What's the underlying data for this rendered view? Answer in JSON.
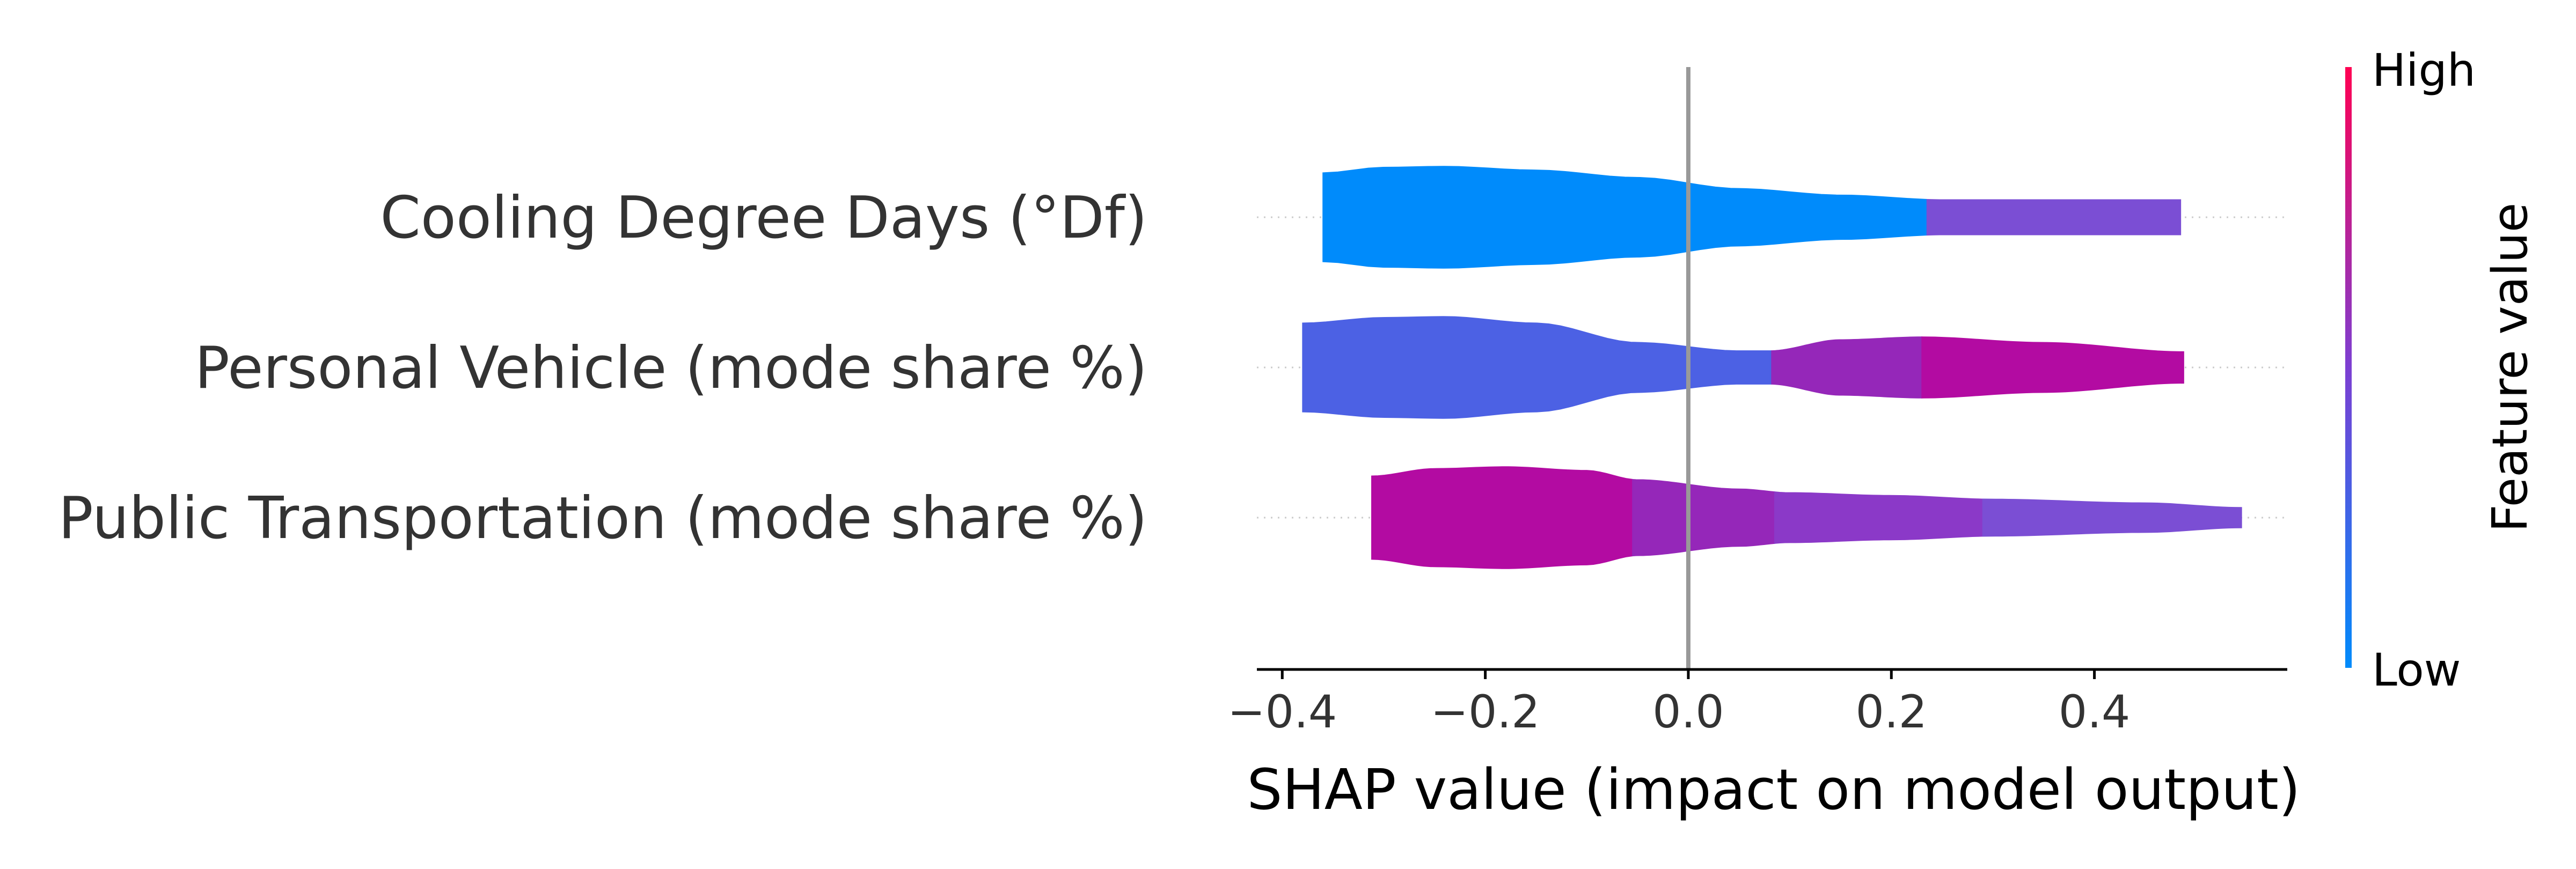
{
  "chart_data": {
    "type": "violin",
    "xlabel": "SHAP value (impact on model output)",
    "xlim": [
      -0.425,
      0.59
    ],
    "xticks": [
      -0.4,
      -0.2,
      0.0,
      0.2,
      0.4
    ],
    "xtick_labels": [
      "−0.4",
      "−0.2",
      "0.0",
      "0.2",
      "0.4"
    ],
    "zero_line": 0.0,
    "features": [
      {
        "name": "Cooling Degree Days (°Df)",
        "x_min": -0.36,
        "x_max": 0.485,
        "density": [
          [
            -0.36,
            0.48
          ],
          [
            -0.3,
            0.54
          ],
          [
            -0.24,
            0.55
          ],
          [
            -0.15,
            0.51
          ],
          [
            -0.05,
            0.43
          ],
          [
            0.05,
            0.31
          ],
          [
            0.15,
            0.24
          ],
          [
            0.25,
            0.19
          ],
          [
            0.35,
            0.19
          ],
          [
            0.485,
            0.19
          ]
        ],
        "color_segments": [
          {
            "from": -0.36,
            "to": 0.235,
            "color": "#008bfb"
          },
          {
            "from": 0.235,
            "to": 0.485,
            "color": "#7b4ed4"
          }
        ]
      },
      {
        "name": "Personal Vehicle (mode share %)",
        "x_min": -0.38,
        "x_max": 0.488,
        "density": [
          [
            -0.38,
            0.48
          ],
          [
            -0.3,
            0.54
          ],
          [
            -0.24,
            0.55
          ],
          [
            -0.15,
            0.48
          ],
          [
            -0.05,
            0.27
          ],
          [
            0.05,
            0.18
          ],
          [
            0.08,
            0.18
          ],
          [
            0.15,
            0.3
          ],
          [
            0.23,
            0.33
          ],
          [
            0.35,
            0.27
          ],
          [
            0.488,
            0.17
          ]
        ],
        "color_segments": [
          {
            "from": -0.38,
            "to": 0.082,
            "color": "#4c61e4"
          },
          {
            "from": 0.082,
            "to": 0.23,
            "color": "#9527b9"
          },
          {
            "from": 0.23,
            "to": 0.488,
            "color": "#b30ba2"
          }
        ]
      },
      {
        "name": "Public Transportation (mode share %)",
        "x_min": -0.312,
        "x_max": 0.545,
        "density": [
          [
            -0.312,
            0.45
          ],
          [
            -0.25,
            0.53
          ],
          [
            -0.18,
            0.55
          ],
          [
            -0.1,
            0.51
          ],
          [
            -0.05,
            0.41
          ],
          [
            0.05,
            0.31
          ],
          [
            0.1,
            0.27
          ],
          [
            0.2,
            0.24
          ],
          [
            0.3,
            0.2
          ],
          [
            0.45,
            0.16
          ],
          [
            0.545,
            0.11
          ]
        ],
        "color_segments": [
          {
            "from": -0.312,
            "to": -0.055,
            "color": "#b30ba2"
          },
          {
            "from": -0.055,
            "to": 0.085,
            "color": "#9527b9"
          },
          {
            "from": 0.085,
            "to": 0.29,
            "color": "#8b39c8"
          },
          {
            "from": 0.29,
            "to": 0.545,
            "color": "#7b4ed4"
          }
        ]
      }
    ],
    "colorbar": {
      "title": "Feature value",
      "high_label": "High",
      "low_label": "Low",
      "high_color": "#ff0052",
      "low_color": "#008bfb"
    }
  }
}
